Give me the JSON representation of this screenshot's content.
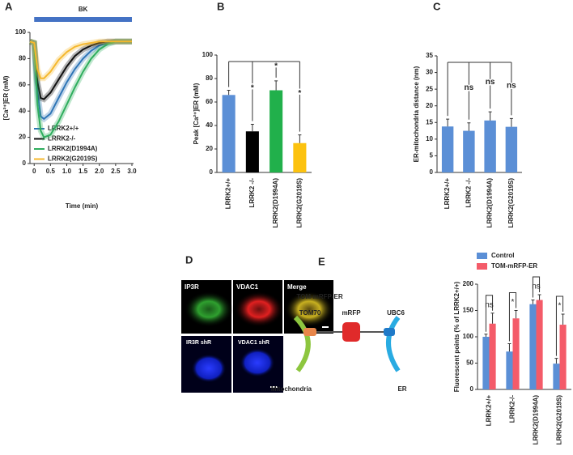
{
  "panel_labels": [
    "A",
    "B",
    "C",
    "D",
    "E"
  ],
  "chart_data": [
    {
      "type": "line",
      "annotation": "BK",
      "xlabel": "Time (min)",
      "ylabel": "[Ca²⁺]ER (mM)",
      "x": [
        -0.13,
        0,
        0.1,
        0.2,
        0.3,
        0.5,
        0.75,
        1.0,
        1.25,
        1.5,
        1.75,
        2.0,
        2.25,
        2.5,
        2.75,
        3.0
      ],
      "series": [
        {
          "name": "LRRK2+/+",
          "color": "#2e75b6",
          "values": [
            93,
            92,
            55,
            36,
            34,
            38,
            50,
            62,
            72,
            80,
            86,
            90,
            92,
            93,
            93,
            93
          ]
        },
        {
          "name": "LRRK2-/-",
          "color": "#111111",
          "values": [
            93,
            92,
            62,
            50,
            49,
            54,
            64,
            74,
            82,
            87,
            90,
            92,
            93,
            93,
            93,
            93
          ]
        },
        {
          "name": "LRRK2(D1994A)",
          "color": "#2fae5e",
          "values": [
            93,
            92,
            45,
            25,
            20,
            22,
            32,
            45,
            58,
            70,
            80,
            87,
            91,
            93,
            93,
            93
          ]
        },
        {
          "name": "LRRK2(G2019S)",
          "color": "#f5b82e",
          "values": [
            93,
            92,
            72,
            65,
            65,
            70,
            79,
            85,
            89,
            91,
            92,
            93,
            93,
            93,
            93,
            93
          ]
        }
      ],
      "xlim": [
        -0.13,
        3.05
      ],
      "xticks": [
        0,
        0.5,
        {
          "value": 1,
          "label": "1.0"
        },
        1.5,
        {
          "value": 2,
          "label": "2.0"
        },
        2.5,
        {
          "value": 3,
          "label": "3.0"
        }
      ],
      "ylim": [
        0,
        100
      ],
      "yticks": [
        0,
        20,
        40,
        60,
        80,
        100
      ],
      "legend": "lower-left"
    },
    {
      "type": "bar",
      "ylabel": "Peak [Ca²⁺]ER (mM)",
      "categories": [
        "LRRK2+/+",
        "LRRK2 -/-",
        "LRRK2(D1994A)",
        "LRRK2(G2019S)"
      ],
      "values": [
        66,
        35,
        70,
        25
      ],
      "errors": [
        4,
        6,
        8,
        7
      ],
      "colors": [
        "#5b8fd6",
        "#000000",
        "#21b04b",
        "#fcc20f"
      ],
      "annotations": [
        null,
        "*",
        "*",
        "*"
      ],
      "ylim": [
        0,
        100
      ],
      "yticks": [
        0,
        20,
        40,
        60,
        80,
        100
      ]
    },
    {
      "type": "bar",
      "ylabel": "ER-mitochondria distance (nm)",
      "categories": [
        "LRRK2+/+",
        "LRRK2 -/-",
        "LRRK2(D1994A)",
        "LRRK2(G2019S)"
      ],
      "values": [
        13.8,
        12.5,
        15.6,
        13.7
      ],
      "errors": [
        2.2,
        2.4,
        2.6,
        2.5
      ],
      "colors": [
        "#5b8fd6",
        "#5b8fd6",
        "#5b8fd6",
        "#5b8fd6"
      ],
      "annotations": [
        null,
        "ns",
        "ns",
        "ns"
      ],
      "ylim": [
        0,
        35
      ],
      "yticks": [
        0,
        5,
        10,
        15,
        20,
        25,
        30,
        35
      ]
    },
    {
      "type": "grouped-bar",
      "ylabel": "Fluorescent points  (% of LRRK2+/+)",
      "categories": [
        "LRRK2+/+",
        "LRRK2-/-",
        "LRRK2(D1994A)",
        "LRRK2(G2019S)"
      ],
      "series": [
        {
          "name": "Control",
          "color": "#5b8fd6",
          "values": [
            100,
            72,
            162,
            49
          ],
          "errors": [
            5,
            15,
            8,
            10
          ]
        },
        {
          "name": "TOM-mRFP-ER",
          "color": "#f45b69",
          "values": [
            125,
            135,
            170,
            123
          ],
          "errors": [
            20,
            15,
            10,
            20
          ]
        }
      ],
      "annotations": [
        "ns",
        "*",
        "ns",
        "*"
      ],
      "ylim": [
        0,
        200
      ],
      "yticks": [
        0,
        50,
        100,
        150,
        200
      ],
      "legend": "top-left"
    }
  ],
  "microscopy": {
    "top": [
      "IP3R",
      "VDAC1",
      "Merge"
    ],
    "bottom": [
      "IR3R shR",
      "VDAC1 shR"
    ]
  },
  "diagram": {
    "title": "TOM-mRFP-ER",
    "parts": [
      "TOM70",
      "mRFP",
      "UBC6"
    ],
    "membranes": [
      "Mitochondria",
      "ER"
    ]
  }
}
